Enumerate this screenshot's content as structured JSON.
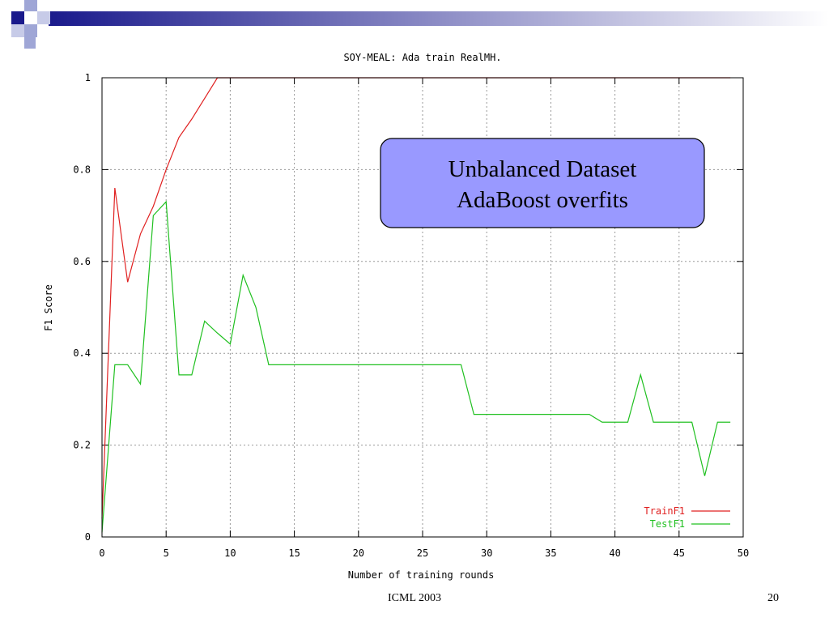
{
  "chart_data": {
    "type": "line",
    "title": "SOY-MEAL: Ada train RealMH.",
    "x_label": "Number of training rounds",
    "y_label": "F1 Score",
    "annotation": [
      "Unbalanced Dataset",
      "AdaBoost overfits"
    ],
    "x": [
      0,
      1,
      2,
      3,
      4,
      5,
      6,
      7,
      8,
      9,
      10,
      11,
      12,
      13,
      14,
      15,
      16,
      17,
      18,
      19,
      20,
      21,
      22,
      23,
      24,
      25,
      26,
      27,
      28,
      29,
      30,
      31,
      32,
      33,
      34,
      35,
      36,
      37,
      38,
      39,
      40,
      41,
      42,
      43,
      44,
      45,
      46,
      47,
      48,
      49
    ],
    "series": [
      {
        "name": "TrainF1",
        "color": "#e02020",
        "values": [
          0.04,
          0.76,
          0.555,
          0.66,
          0.72,
          0.8,
          0.87,
          0.91,
          0.955,
          1,
          1,
          1,
          1,
          1,
          1,
          1,
          1,
          1,
          1,
          1,
          1,
          1,
          1,
          1,
          1,
          1,
          1,
          1,
          1,
          1,
          1,
          1,
          1,
          1,
          1,
          1,
          1,
          1,
          1,
          1,
          1,
          1,
          1,
          1,
          1,
          1,
          1,
          1,
          1,
          1
        ]
      },
      {
        "name": "TestF1",
        "color": "#20c020",
        "values": [
          0.01,
          0.375,
          0.375,
          0.333,
          0.7,
          0.73,
          0.353,
          0.353,
          0.47,
          0.444,
          0.42,
          0.57,
          0.5,
          0.375,
          0.375,
          0.375,
          0.375,
          0.375,
          0.375,
          0.375,
          0.375,
          0.375,
          0.375,
          0.375,
          0.375,
          0.375,
          0.375,
          0.375,
          0.375,
          0.267,
          0.267,
          0.267,
          0.267,
          0.267,
          0.267,
          0.267,
          0.267,
          0.267,
          0.267,
          0.25,
          0.25,
          0.25,
          0.353,
          0.25,
          0.25,
          0.25,
          0.25,
          0.133,
          0.25,
          0.25
        ]
      }
    ],
    "xlim": [
      0,
      50
    ],
    "xticks": [
      0,
      5,
      10,
      15,
      20,
      25,
      30,
      35,
      40,
      45,
      50
    ],
    "ylim": [
      0,
      1
    ],
    "yticks": [
      0,
      0.2,
      0.4,
      0.6,
      0.8,
      1
    ],
    "grid": true,
    "legend": "bottom-right"
  },
  "slide": {
    "footer": "ICML 2003",
    "page_number": "20"
  }
}
